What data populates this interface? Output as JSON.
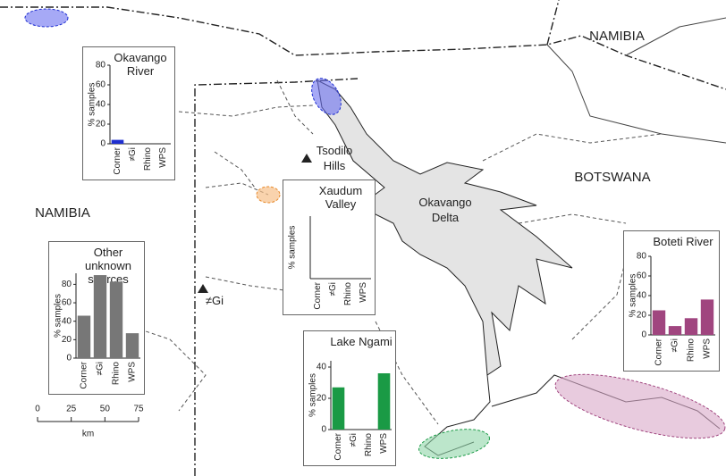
{
  "map": {
    "labels": {
      "namibia_north": "NAMIBIA",
      "namibia_west": "NAMIBIA",
      "botswana": "BOTSWANA",
      "delta": "Okavango Delta",
      "tsodilo": "Tsodilo Hills",
      "gi": "≠Gi"
    },
    "scale_bar": {
      "ticks": [
        0,
        25,
        50,
        75
      ],
      "unit": "km"
    }
  },
  "chart_data": [
    {
      "type": "bar",
      "title": "Okavango River",
      "y_label": "% samples",
      "categories": [
        "Corner",
        "≠Gi",
        "Rhino",
        "WPS"
      ],
      "values": [
        4,
        0,
        0,
        0
      ],
      "color": "#1f2fd0",
      "ylim": [
        0,
        80
      ],
      "yticks": [
        0,
        20,
        40,
        60,
        80
      ]
    },
    {
      "type": "bar",
      "title": "Xaudum Valley",
      "y_label": "% samples",
      "categories": [
        "Corner",
        "≠Gi",
        "Rhino",
        "WPS"
      ],
      "values": [
        0,
        0,
        0,
        0
      ],
      "color": "#e8892a",
      "ylim": [
        0,
        80
      ]
    },
    {
      "type": "bar",
      "title": "Other unknown sources",
      "y_label": "% samples",
      "categories": [
        "Corner",
        "≠Gi",
        "Rhino",
        "WPS"
      ],
      "values": [
        46,
        90,
        83,
        27
      ],
      "color": "#777777",
      "ylim": [
        0,
        92
      ],
      "yticks": [
        0,
        20,
        40,
        60,
        80
      ]
    },
    {
      "type": "bar",
      "title": "Lake Ngami",
      "y_label": "% samples",
      "categories": [
        "Corner",
        "≠Gi",
        "Rhino",
        "WPS"
      ],
      "values": [
        27,
        0,
        0,
        36
      ],
      "color": "#1a9a45",
      "ylim": [
        0,
        44
      ],
      "yticks": [
        0,
        20,
        40
      ]
    },
    {
      "type": "bar",
      "title": "Boteti River",
      "y_label": "% samples",
      "categories": [
        "Corner",
        "≠Gi",
        "Rhino",
        "WPS"
      ],
      "values": [
        25,
        9,
        17,
        36
      ],
      "color": "#a0457f",
      "ylim": [
        0,
        80
      ],
      "yticks": [
        0,
        20,
        40,
        60,
        80
      ]
    }
  ]
}
